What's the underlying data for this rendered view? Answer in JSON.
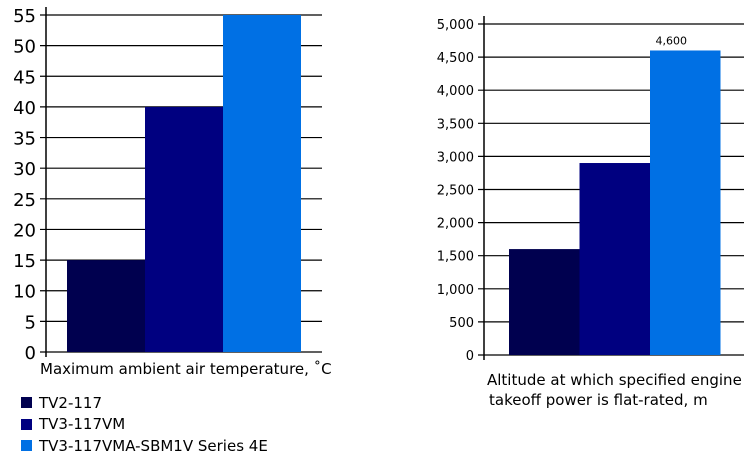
{
  "chart_data": [
    {
      "type": "bar",
      "title": "",
      "xlabel": "Maximum ambient air temperature, ˚C",
      "ylabel": "",
      "ylim": [
        0,
        55
      ],
      "yticks": [
        0,
        5,
        10,
        15,
        20,
        25,
        30,
        35,
        40,
        45,
        50,
        55
      ],
      "ytick_labels": [
        "0",
        "5",
        "10",
        "15",
        "20",
        "25",
        "30",
        "35",
        "40",
        "45",
        "50",
        "55"
      ],
      "grid": true,
      "categories": [
        "TV2-117",
        "TV3-117VM",
        "TV3-117VMA-SBM1V Series 4E"
      ],
      "values": [
        15,
        40,
        55
      ]
    },
    {
      "type": "bar",
      "title": "",
      "xlabel_lines": [
        "Altitude at which specified engine",
        "takeoff power is flat-rated, m"
      ],
      "ylabel": "",
      "ylim": [
        0,
        5000
      ],
      "yticks": [
        0,
        500,
        1000,
        1500,
        2000,
        2500,
        3000,
        3500,
        4000,
        4500,
        5000
      ],
      "ytick_labels": [
        "0",
        "500",
        "1,000",
        "1,500",
        "2,000",
        "2,500",
        "3,000",
        "3,500",
        "4,000",
        "4,500",
        "5,000"
      ],
      "grid": true,
      "categories": [
        "TV2-117",
        "TV3-117VM",
        "TV3-117VMA-SBM1V Series 4E"
      ],
      "values": [
        1600,
        2900,
        4600
      ],
      "data_labels": [
        "",
        "",
        "4,600"
      ]
    }
  ],
  "legend": {
    "placement": "bottom-left",
    "items": [
      {
        "label": "TV2-117",
        "color": "#00004f"
      },
      {
        "label": "TV3-117VM",
        "color": "#000080"
      },
      {
        "label": "TV3-117VMA-SBM1V Series 4E",
        "color": "#0070e4"
      }
    ]
  }
}
